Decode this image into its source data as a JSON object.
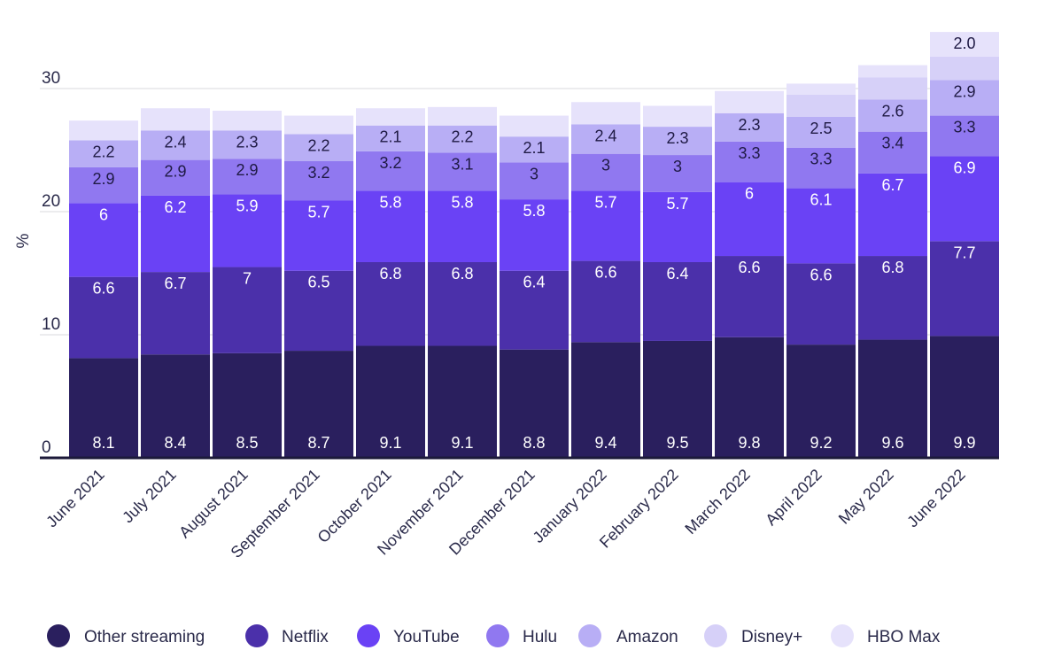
{
  "chart_data": {
    "type": "bar",
    "stacked": true,
    "ylabel": "%",
    "xlabel": "",
    "ylim": [
      0,
      35
    ],
    "yticks": [
      "0",
      "10",
      "20",
      "30"
    ],
    "grid": true,
    "legend_position": "bottom",
    "categories": [
      "June 2021",
      "July 2021",
      "August 2021",
      "September 2021",
      "October 2021",
      "November 2021",
      "December 2021",
      "January 2022",
      "February 2022",
      "March 2022",
      "April 2022",
      "May 2022",
      "June 2022"
    ],
    "series": [
      {
        "name": "Other streaming",
        "color": "#2a1f5e",
        "label_color": "#ffffff",
        "values": [
          8.1,
          8.4,
          8.5,
          8.7,
          9.1,
          9.1,
          8.8,
          9.4,
          9.5,
          9.8,
          9.2,
          9.6,
          9.9
        ],
        "labels": [
          "8.1",
          "8.4",
          "8.5",
          "8.7",
          "9.1",
          "9.1",
          "8.8",
          "9.4",
          "9.5",
          "9.8",
          "9.2",
          "9.6",
          "9.9"
        ]
      },
      {
        "name": "Netflix",
        "color": "#4b30aa",
        "label_color": "#ffffff",
        "values": [
          6.6,
          6.7,
          7,
          6.5,
          6.8,
          6.8,
          6.4,
          6.6,
          6.4,
          6.6,
          6.6,
          6.8,
          7.7
        ],
        "labels": [
          "6.6",
          "6.7",
          "7",
          "6.5",
          "6.8",
          "6.8",
          "6.4",
          "6.6",
          "6.4",
          "6.6",
          "6.6",
          "6.8",
          "7.7"
        ]
      },
      {
        "name": "YouTube",
        "color": "#6a42f5",
        "label_color": "#ffffff",
        "values": [
          6,
          6.2,
          5.9,
          5.7,
          5.8,
          5.8,
          5.8,
          5.7,
          5.7,
          6,
          6.1,
          6.7,
          6.9
        ],
        "labels": [
          "6",
          "6.2",
          "5.9",
          "5.7",
          "5.8",
          "5.8",
          "5.8",
          "5.7",
          "5.7",
          "6",
          "6.1",
          "6.7",
          "6.9"
        ]
      },
      {
        "name": "Hulu",
        "color": "#9078f0",
        "label_color": "#1f1a44",
        "values": [
          2.9,
          2.9,
          2.9,
          3.2,
          3.2,
          3.1,
          3,
          3,
          3,
          3.3,
          3.3,
          3.4,
          3.3
        ],
        "labels": [
          "2.9",
          "2.9",
          "2.9",
          "3.2",
          "3.2",
          "3.1",
          "3",
          "3",
          "3",
          "3.3",
          "3.3",
          "3.4",
          "3.3"
        ]
      },
      {
        "name": "Amazon",
        "color": "#b8aef5",
        "label_color": "#1f1a44",
        "values": [
          2.2,
          2.4,
          2.3,
          2.2,
          2.1,
          2.2,
          2.1,
          2.4,
          2.3,
          2.3,
          2.5,
          2.6,
          2.9
        ],
        "labels": [
          "2.2",
          "2.4",
          "2.3",
          "2.2",
          "2.1",
          "2.2",
          "2.1",
          "2.4",
          "2.3",
          "2.3",
          "2.5",
          "2.6",
          "2.9"
        ]
      },
      {
        "name": "Disney+",
        "color": "#d6d0f8",
        "label_color": "#1f1a44",
        "values": [
          0,
          0,
          0,
          0,
          0,
          0,
          0,
          0,
          0,
          0,
          1.8,
          1.8,
          1.9
        ],
        "labels": [
          "",
          "",
          "",
          "",
          "",
          "",
          "",
          "",
          "",
          "",
          "",
          "",
          ""
        ]
      },
      {
        "name": "HBO Max",
        "color": "#e6e2fb",
        "label_color": "#1f1a44",
        "values": [
          1.6,
          1.8,
          1.6,
          1.5,
          1.4,
          1.5,
          1.7,
          1.8,
          1.7,
          1.8,
          0.9,
          1.0,
          2.0
        ],
        "labels": [
          "",
          "",
          "",
          "",
          "",
          "",
          "",
          "",
          "",
          "",
          "",
          "",
          "2.0"
        ]
      }
    ]
  }
}
